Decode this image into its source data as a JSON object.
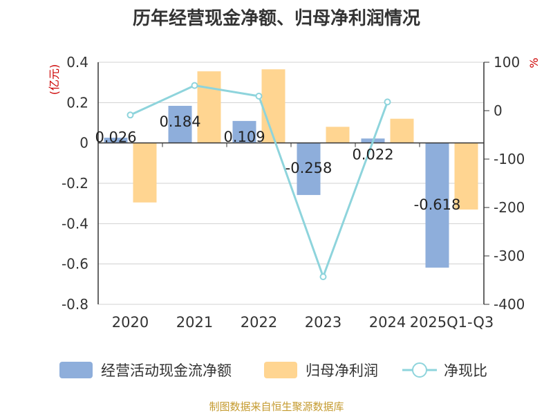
{
  "chart_data": {
    "type": "bar",
    "title": "历年经营现金净额、归母净利润情况",
    "categories": [
      "2020",
      "2021",
      "2022",
      "2023",
      "2024",
      "2025Q1-Q3"
    ],
    "series": [
      {
        "name": "经营活动现金流净额",
        "type": "bar",
        "axis": "left",
        "color": "#8eaedb",
        "values": [
          0.026,
          0.184,
          0.109,
          -0.258,
          0.022,
          -0.618
        ],
        "labels": [
          "0.026",
          "0.184",
          "0.109",
          "-0.258",
          "0.022",
          "-0.618"
        ]
      },
      {
        "name": "归母净利润",
        "type": "bar",
        "axis": "left",
        "color": "#ffd591",
        "values": [
          -0.295,
          0.355,
          0.365,
          0.08,
          0.12,
          -0.33
        ]
      },
      {
        "name": "净现比",
        "type": "line",
        "axis": "right",
        "color": "#8ed4dc",
        "values": [
          -9,
          52,
          30,
          -343,
          18,
          null
        ]
      }
    ],
    "y_left": {
      "label": "(亿元)",
      "min": -0.8,
      "max": 0.4,
      "ticks": [
        0.4,
        0.2,
        0,
        -0.2,
        -0.4,
        -0.6,
        -0.8
      ],
      "tick_labels": [
        "0.4",
        "0.2",
        "0",
        "-0.2",
        "-0.4",
        "-0.6",
        "-0.8"
      ]
    },
    "y_right": {
      "label": "%",
      "min": -400,
      "max": 100,
      "ticks": [
        100,
        0,
        -100,
        -200,
        -300,
        -400
      ],
      "tick_labels": [
        "100",
        "0",
        "-100",
        "-200",
        "-300",
        "-400"
      ]
    },
    "legend_position": "bottom",
    "grid": true
  },
  "source_text": "制图数据来自恒生聚源数据库"
}
